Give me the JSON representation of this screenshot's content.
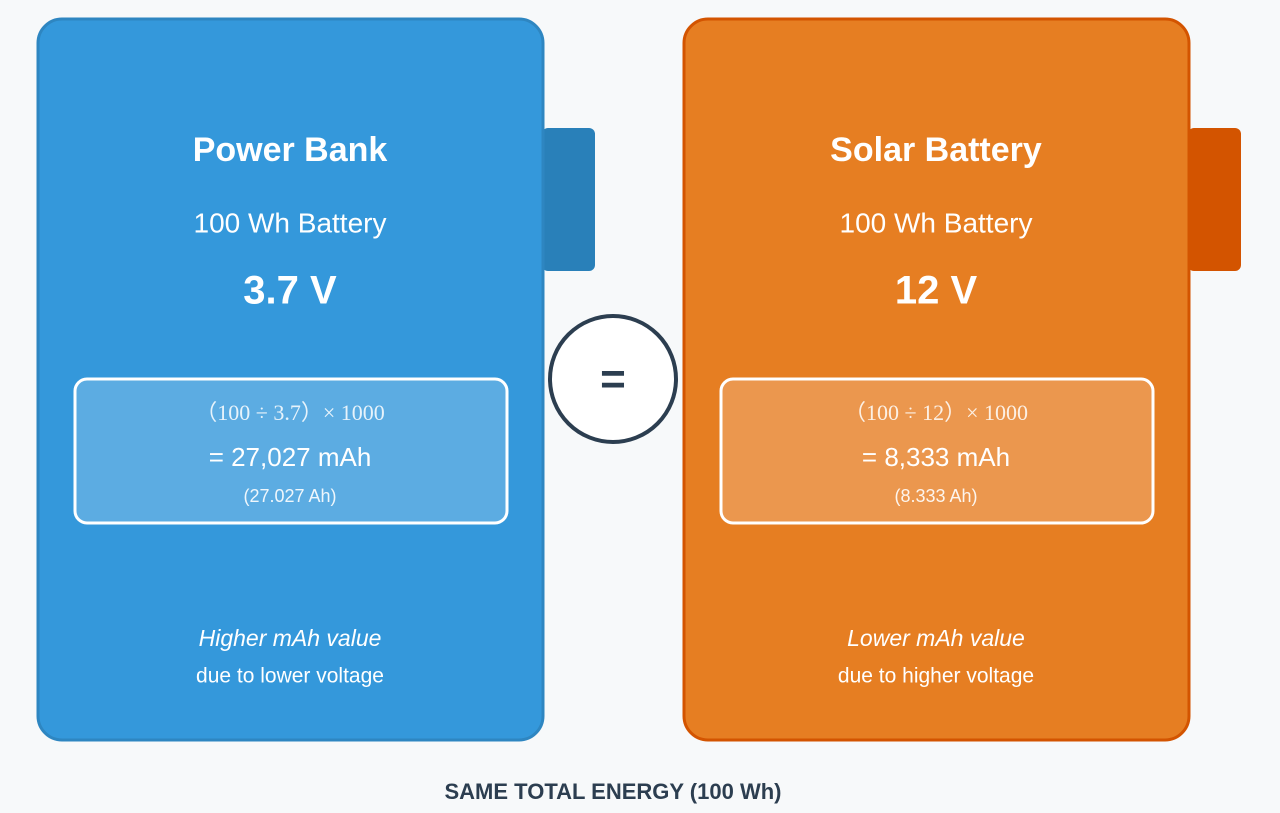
{
  "panels": [
    {
      "title": "Power Bank",
      "capacity": "100 Wh Battery",
      "voltage": "3.7 V",
      "formula": "（100 ÷ 3.7）× 1000",
      "result": "= 27,027 mAh",
      "result_ah": "(27.027 Ah)",
      "note": "Higher mAh value",
      "reason": "due to lower voltage"
    },
    {
      "title": "Solar Battery",
      "capacity": "100 Wh Battery",
      "voltage": "12 V",
      "formula": "（100 ÷ 12）× 1000",
      "result": "= 8,333 mAh",
      "result_ah": "(8.333 Ah)",
      "note": "Lower mAh value",
      "reason": "due to higher voltage"
    }
  ],
  "equals": "=",
  "footer": "SAME TOTAL ENERGY (100 Wh)"
}
